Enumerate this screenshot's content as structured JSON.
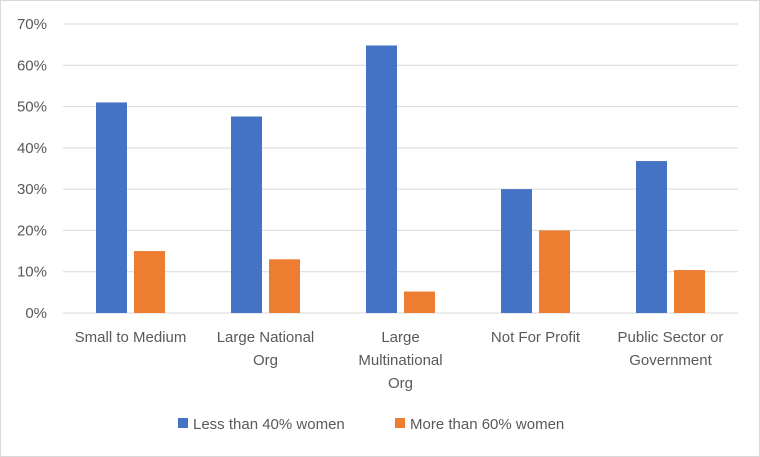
{
  "chart_data": {
    "type": "bar",
    "title": "",
    "xlabel": "",
    "ylabel": "",
    "categories": [
      [
        "Small to Medium"
      ],
      [
        "Large National",
        "Org"
      ],
      [
        "Large",
        "Multinational",
        "Org"
      ],
      [
        "Not For Profit"
      ],
      [
        "Public Sector or",
        "Government"
      ]
    ],
    "series": [
      {
        "name": "Less than 40% women",
        "color": "#4472c4",
        "values": [
          51,
          47.6,
          64.8,
          30,
          36.8
        ]
      },
      {
        "name": "More than 60% women",
        "color": "#ed7d31",
        "values": [
          15,
          13,
          5.2,
          20,
          10.4
        ]
      }
    ],
    "ylim": [
      0,
      70
    ],
    "y_ticks": [
      "0%",
      "10%",
      "20%",
      "30%",
      "40%",
      "50%",
      "60%",
      "70%"
    ],
    "grid": true,
    "legend_position": "bottom"
  }
}
